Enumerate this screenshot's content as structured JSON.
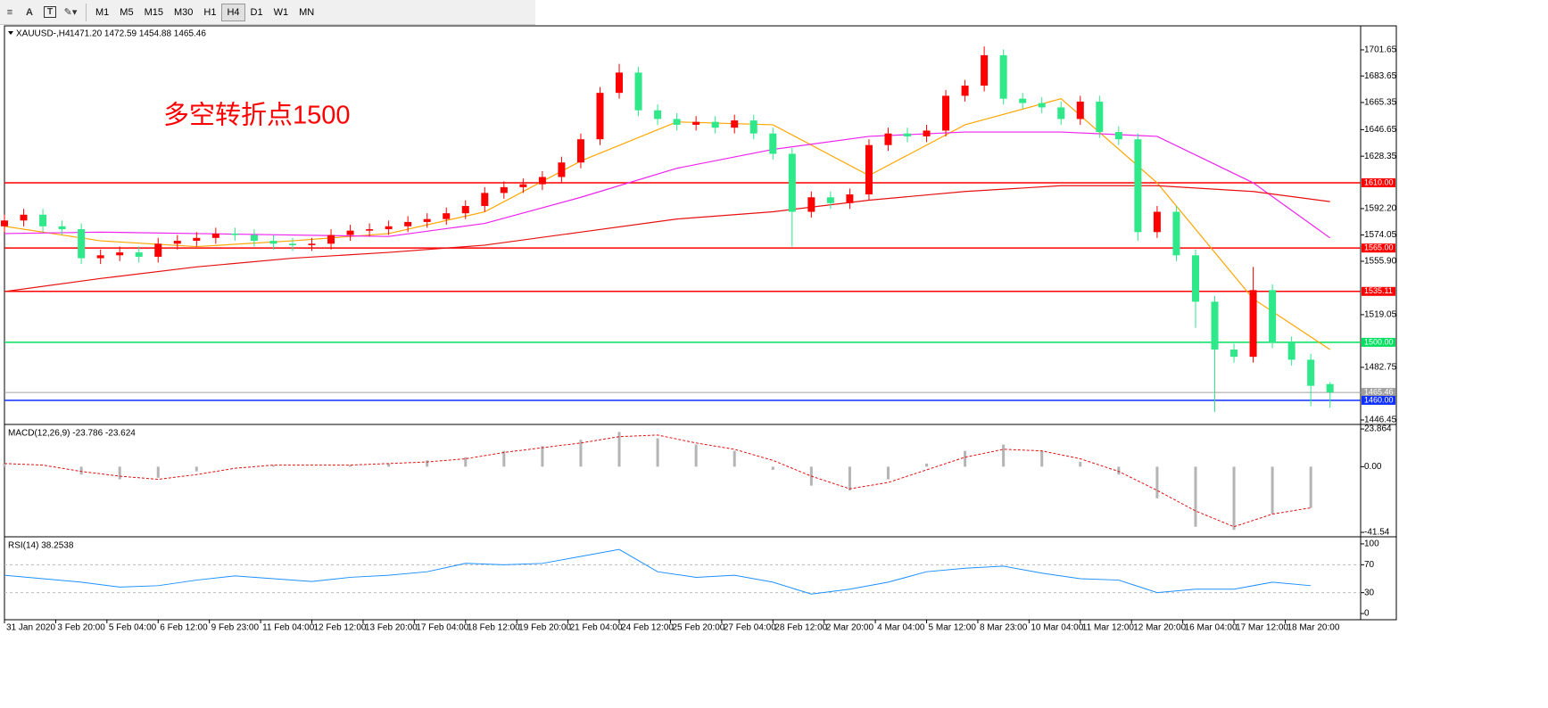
{
  "toolbar": {
    "icons": [
      "A",
      "T"
    ],
    "timeframes": [
      "M1",
      "M5",
      "M15",
      "M30",
      "H1",
      "H4",
      "D1",
      "W1",
      "MN"
    ],
    "active": "H4"
  },
  "chart_data": [
    {
      "type": "candlestick",
      "title": "XAUUSD-,H4",
      "ohlc_text": "1471.20 1472.59 1454.88 1465.46",
      "annotation": "多空转折点1500",
      "up_color": "#ff0000",
      "down_color": "#2ee88a",
      "x": [
        0,
        3,
        6,
        9,
        12,
        15,
        18,
        21,
        24,
        27,
        30,
        33,
        36,
        39,
        42,
        45,
        48,
        51,
        54,
        57,
        60,
        63,
        66,
        69,
        72,
        75,
        78,
        81,
        84,
        87,
        90,
        93,
        96,
        99,
        102,
        105,
        108,
        111,
        114,
        117,
        120,
        123,
        126,
        129,
        132,
        135,
        138,
        141,
        144,
        147,
        150,
        153,
        156,
        159,
        162,
        165,
        168,
        171,
        174,
        177,
        180,
        183,
        186,
        189,
        192,
        195,
        198,
        201,
        204,
        207
      ],
      "open": [
        1580,
        1584,
        1588,
        1580,
        1578,
        1558,
        1560,
        1562,
        1559,
        1568,
        1570,
        1572,
        1575,
        1574,
        1570,
        1568,
        1567,
        1568,
        1574,
        1577,
        1578,
        1580,
        1583,
        1585,
        1589,
        1594,
        1603,
        1607,
        1609,
        1614,
        1624,
        1640,
        1672,
        1686,
        1660,
        1654,
        1650,
        1652,
        1648,
        1653,
        1644,
        1630,
        1590,
        1600,
        1596,
        1602,
        1636,
        1644,
        1642,
        1646,
        1670,
        1677,
        1698,
        1668,
        1665,
        1662,
        1654,
        1666,
        1645,
        1640,
        1576,
        1590,
        1560,
        1528,
        1495,
        1490,
        1536,
        1500,
        1488,
        1471.2
      ],
      "high": [
        1588,
        1592,
        1592,
        1584,
        1582,
        1564,
        1566,
        1566,
        1572,
        1574,
        1576,
        1579,
        1579,
        1578,
        1574,
        1572,
        1572,
        1578,
        1581,
        1582,
        1584,
        1587,
        1589,
        1593,
        1598,
        1607,
        1611,
        1613,
        1618,
        1628,
        1644,
        1676,
        1692,
        1690,
        1664,
        1658,
        1656,
        1656,
        1657,
        1657,
        1648,
        1634,
        1604,
        1604,
        1606,
        1640,
        1648,
        1648,
        1650,
        1674,
        1681,
        1704,
        1702,
        1672,
        1669,
        1666,
        1670,
        1670,
        1649,
        1644,
        1594,
        1594,
        1564,
        1532,
        1499,
        1552,
        1540,
        1504,
        1492,
        1472.59
      ],
      "low": [
        1576,
        1580,
        1576,
        1574,
        1554,
        1554,
        1556,
        1555,
        1555,
        1564,
        1566,
        1568,
        1570,
        1566,
        1564,
        1563,
        1563,
        1564,
        1570,
        1573,
        1574,
        1576,
        1579,
        1581,
        1585,
        1590,
        1599,
        1603,
        1605,
        1610,
        1620,
        1636,
        1668,
        1656,
        1650,
        1646,
        1646,
        1644,
        1644,
        1640,
        1626,
        1566,
        1586,
        1592,
        1592,
        1598,
        1632,
        1638,
        1638,
        1642,
        1666,
        1673,
        1664,
        1661,
        1658,
        1650,
        1650,
        1641,
        1636,
        1570,
        1572,
        1556,
        1510,
        1452,
        1486,
        1486,
        1496,
        1484,
        1456,
        1454.88
      ],
      "close": [
        1584,
        1588,
        1580,
        1578,
        1558,
        1560,
        1562,
        1559,
        1568,
        1570,
        1572,
        1575,
        1574,
        1570,
        1568,
        1567,
        1568,
        1574,
        1577,
        1578,
        1580,
        1583,
        1585,
        1589,
        1594,
        1603,
        1607,
        1609,
        1614,
        1624,
        1640,
        1672,
        1686,
        1660,
        1654,
        1650,
        1652,
        1648,
        1653,
        1644,
        1630,
        1590,
        1600,
        1596,
        1602,
        1636,
        1644,
        1642,
        1646,
        1670,
        1677,
        1698,
        1668,
        1665,
        1662,
        1654,
        1666,
        1645,
        1640,
        1576,
        1590,
        1560,
        1528,
        1495,
        1490,
        1536,
        1500,
        1488,
        1470,
        1465.46
      ],
      "overlay_x": [
        0,
        15,
        30,
        45,
        60,
        75,
        90,
        105,
        120,
        135,
        150,
        165,
        180,
        195,
        207
      ],
      "overlays": [
        {
          "color": "#ffa500",
          "values": [
            1580,
            1570,
            1566,
            1570,
            1575,
            1590,
            1625,
            1652,
            1650,
            1615,
            1650,
            1668,
            1610,
            1530,
            1495
          ]
        },
        {
          "color": "#ee22ee",
          "values": [
            1575,
            1576,
            1575,
            1574,
            1573,
            1582,
            1600,
            1620,
            1633,
            1642,
            1645,
            1645,
            1642,
            1610,
            1572
          ]
        },
        {
          "color": "#e81010",
          "values": [
            1535,
            1544,
            1552,
            1558,
            1562,
            1567,
            1576,
            1585,
            1590,
            1598,
            1604,
            1608,
            1608,
            1604,
            1597
          ]
        }
      ],
      "levels": [
        {
          "value": 1610,
          "label": "1610.00",
          "color": "#ff0000"
        },
        {
          "value": 1565,
          "label": "1565.00",
          "color": "#ff0000"
        },
        {
          "value": 1535.11,
          "label": "1535.11",
          "color": "#ff0000"
        },
        {
          "value": 1500,
          "label": "1500.00",
          "color": "#00e060"
        },
        {
          "value": 1465.46,
          "label": "1465.46",
          "color": "#a0a0a0"
        },
        {
          "value": 1460,
          "label": "1460.00",
          "color": "#1030ff"
        }
      ],
      "xlim": [
        0,
        211.5
      ],
      "ylim": [
        1444.6,
        1717.6
      ],
      "yticks": [
        1701.65,
        1683.65,
        1665.35,
        1646.65,
        1628.35,
        {
          "value": 1592.2,
          "label": "1592.20"
        },
        {
          "value": 1574.05,
          "label": "1574.05"
        },
        {
          "value": 1555.9,
          "label": "1555.90"
        },
        {
          "value": 1519.05,
          "label": "1519.05"
        },
        1482.75,
        1446.45
      ],
      "xticks": [
        {
          "value": 0,
          "label": "31 Jan 2020"
        },
        {
          "value": 8,
          "label": "3 Feb 20:00"
        },
        {
          "value": 16,
          "label": "5 Feb 04:00"
        },
        {
          "value": 24,
          "label": "6 Feb 12:00"
        },
        {
          "value": 32,
          "label": "9 Feb 23:00"
        },
        {
          "value": 40,
          "label": "11 Feb 04:00"
        },
        {
          "value": 48,
          "label": "12 Feb 12:00"
        },
        {
          "value": 56,
          "label": "13 Feb 20:00"
        },
        {
          "value": 64,
          "label": "17 Feb 04:00"
        },
        {
          "value": 72,
          "label": "18 Feb 12:00"
        },
        {
          "value": 80,
          "label": "19 Feb 20:00"
        },
        {
          "value": 88,
          "label": "21 Feb 04:00"
        },
        {
          "value": 96,
          "label": "24 Feb 12:00"
        },
        {
          "value": 104,
          "label": "25 Feb 20:00"
        },
        {
          "value": 112,
          "label": "27 Feb 04:00"
        },
        {
          "value": 120,
          "label": "28 Feb 12:00"
        },
        {
          "value": 128,
          "label": "2 Mar 20:00"
        },
        {
          "value": 136,
          "label": "4 Mar 04:00"
        },
        {
          "value": 144,
          "label": "5 Mar 12:00"
        },
        {
          "value": 152,
          "label": "8 Mar 23:00"
        },
        {
          "value": 160,
          "label": "10 Mar 04:00"
        },
        {
          "value": 168,
          "label": "11 Mar 12:00"
        },
        {
          "value": 176,
          "label": "12 Mar 20:00"
        },
        {
          "value": 184,
          "label": "16 Mar 04:00"
        },
        {
          "value": 192,
          "label": "17 Mar 12:00"
        },
        {
          "value": 200,
          "label": "18 Mar 20:00"
        }
      ]
    },
    {
      "type": "macd",
      "title": "MACD(12,26,9) -23.786 -23.624",
      "bar_color": "#b4b4b4",
      "signal_color": "#e01010",
      "x": [
        0,
        6,
        12,
        18,
        24,
        30,
        36,
        42,
        48,
        54,
        60,
        66,
        72,
        78,
        84,
        90,
        96,
        102,
        108,
        114,
        120,
        126,
        132,
        138,
        144,
        150,
        156,
        162,
        168,
        174,
        180,
        186,
        192,
        198,
        204
      ],
      "histogram": [
        2,
        0,
        -5,
        -8,
        -7,
        -3,
        0,
        1,
        0,
        1,
        2,
        4,
        6,
        10,
        13,
        17,
        22,
        18,
        14,
        10,
        -2,
        -12,
        -15,
        -8,
        2,
        10,
        14,
        10,
        3,
        -5,
        -20,
        -38,
        -40,
        -30,
        -26
      ],
      "signal": [
        2,
        1,
        -3,
        -6,
        -8,
        -5,
        -1,
        1,
        1,
        1,
        2,
        3,
        5,
        9,
        12,
        15,
        19,
        20,
        15,
        11,
        4,
        -6,
        -14,
        -10,
        -2,
        6,
        11,
        10,
        5,
        -3,
        -15,
        -28,
        -38,
        -30,
        -26
      ],
      "xlim": [
        0,
        211.5
      ],
      "ylim": [
        -43.8,
        25.6
      ],
      "yticks": [
        23.864,
        {
          "value": 0,
          "label": "0.00"
        },
        -41.54
      ]
    },
    {
      "type": "line",
      "title": "RSI(14) 38.2538",
      "color": "#1e90ff",
      "x": [
        0,
        6,
        12,
        18,
        24,
        30,
        36,
        42,
        48,
        54,
        60,
        66,
        72,
        78,
        84,
        90,
        96,
        102,
        108,
        114,
        120,
        126,
        132,
        138,
        144,
        150,
        156,
        162,
        168,
        174,
        180,
        186,
        192,
        198,
        204
      ],
      "values": [
        55,
        50,
        45,
        38,
        40,
        48,
        54,
        50,
        46,
        52,
        55,
        60,
        72,
        70,
        72,
        82,
        92,
        60,
        52,
        55,
        45,
        28,
        35,
        45,
        60,
        65,
        68,
        58,
        50,
        48,
        30,
        35,
        35,
        45,
        40
      ],
      "xlim": [
        0,
        211.5
      ],
      "ylim": [
        -7.6,
        107.6
      ],
      "yticks": [
        100,
        70,
        30,
        0
      ],
      "levels": [
        70,
        30
      ]
    }
  ]
}
